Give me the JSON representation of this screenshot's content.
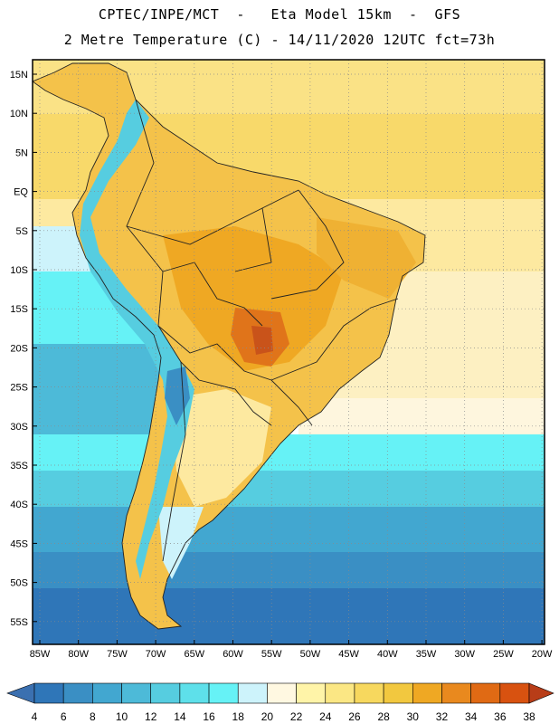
{
  "header": {
    "title_line1": "CPTEC/INPE/MCT  -   Eta Model 15km  -  GFS",
    "title_line2": "2 Metre Temperature (C) - 14/11/2020 12UTC fct=73h"
  },
  "map": {
    "lat_labels": [
      "15N",
      "10N",
      "5N",
      "EQ",
      "5S",
      "10S",
      "15S",
      "20S",
      "25S",
      "30S",
      "35S",
      "40S",
      "45S",
      "50S",
      "55S"
    ],
    "lon_labels": [
      "85W",
      "80W",
      "75W",
      "70W",
      "65W",
      "60W",
      "55W",
      "50W",
      "45W",
      "40W",
      "35W",
      "30W",
      "25W",
      "20W"
    ],
    "lat_values": [
      15,
      10,
      5,
      0,
      -5,
      -10,
      -15,
      -20,
      -25,
      -30,
      -35,
      -40,
      -45,
      -50,
      -55
    ],
    "lon_values": [
      -85,
      -80,
      -75,
      -70,
      -65,
      -60,
      -55,
      -50,
      -45,
      -40,
      -35,
      -30,
      -25,
      -20
    ]
  },
  "colorbar": {
    "labels": [
      "4",
      "6",
      "8",
      "10",
      "12",
      "14",
      "16",
      "18",
      "20",
      "22",
      "24",
      "26",
      "28",
      "30",
      "32",
      "34",
      "36",
      "38"
    ],
    "colors": [
      "#3b70b0",
      "#2f76b8",
      "#3a8fc4",
      "#42a7d0",
      "#4dbad8",
      "#56cde0",
      "#5ee0ea",
      "#66f2f6",
      "#cdf3fb",
      "#fff8e1",
      "#fff4a8",
      "#fbe784",
      "#f7d85e",
      "#f2c83f",
      "#efa823",
      "#e9891e",
      "#e06a14",
      "#d85210",
      "#c73e0d",
      "#b83d18"
    ]
  }
}
